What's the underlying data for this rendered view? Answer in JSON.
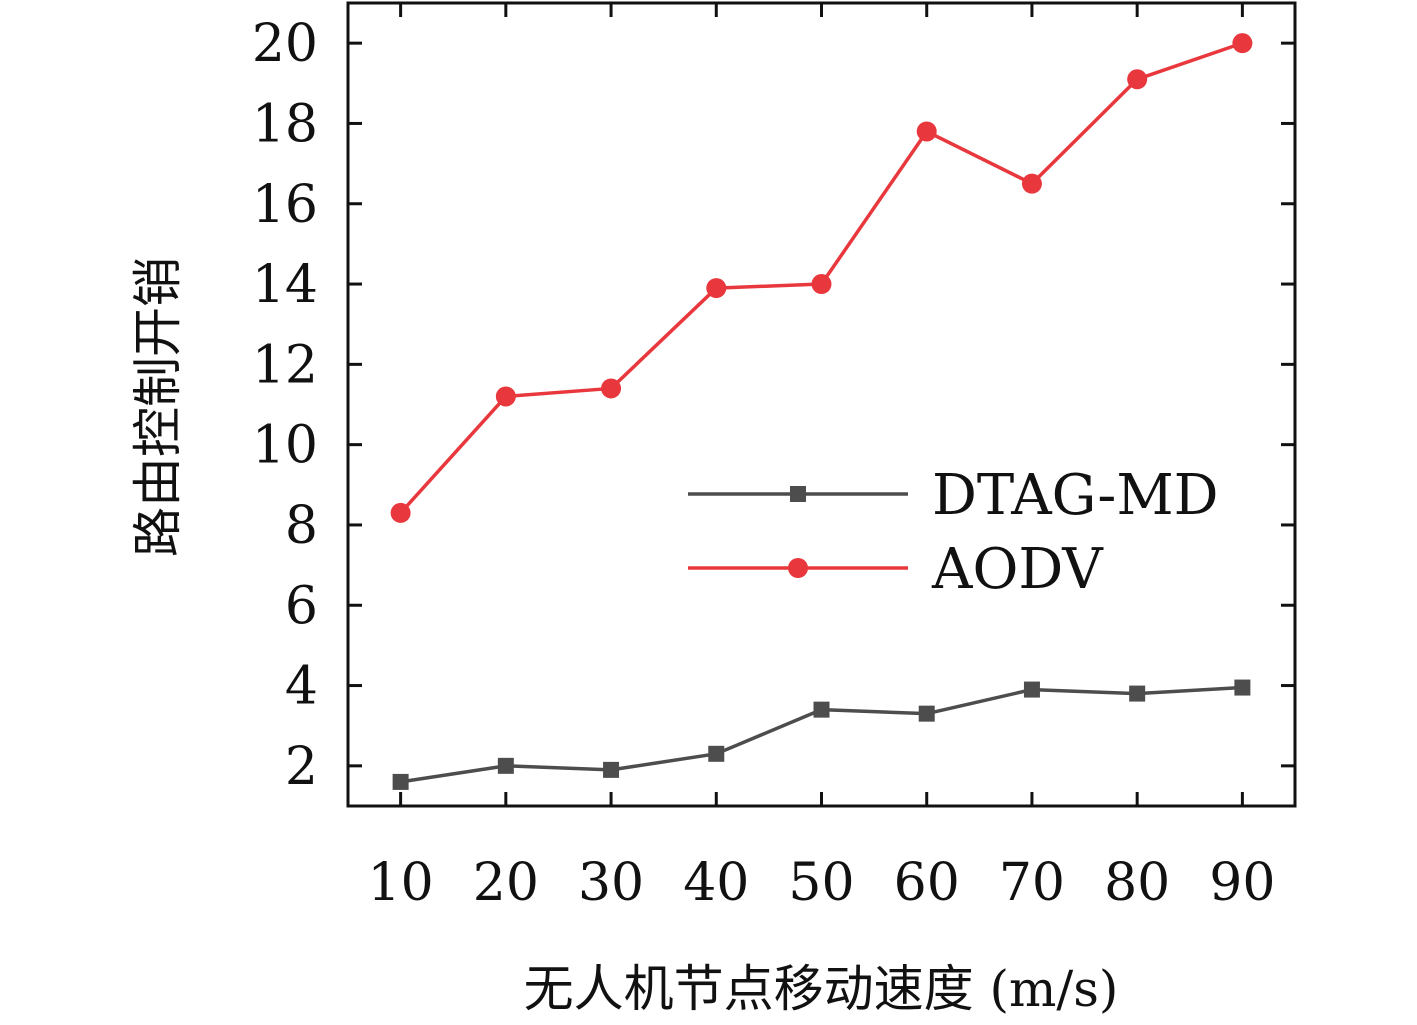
{
  "chart_data": {
    "type": "line",
    "xlabel": "无人机节点移动速度 (m/s)",
    "ylabel": "路由控制开销",
    "x": [
      10,
      20,
      30,
      40,
      50,
      60,
      70,
      80,
      90
    ],
    "x_tick_labels": [
      "10",
      "20",
      "30",
      "40",
      "50",
      "60",
      "70",
      "80",
      "90"
    ],
    "y_ticks": [
      2,
      4,
      6,
      8,
      10,
      12,
      14,
      16,
      18,
      20
    ],
    "y_tick_labels": [
      "2",
      "4",
      "6",
      "8",
      "10",
      "12",
      "14",
      "16",
      "18",
      "20"
    ],
    "xlim": [
      5,
      95
    ],
    "ylim": [
      1,
      21
    ],
    "grid": false,
    "legend_position": "right",
    "series": [
      {
        "name": "DTAG-MD",
        "color": "#4d4d4d",
        "marker": "square",
        "values": [
          1.6,
          2.0,
          1.9,
          2.3,
          3.4,
          3.3,
          3.9,
          3.8,
          3.95
        ]
      },
      {
        "name": "AODV",
        "color": "#e8383d",
        "marker": "circle",
        "values": [
          8.3,
          11.2,
          11.4,
          13.9,
          14.0,
          17.8,
          16.5,
          19.1,
          20.0
        ]
      }
    ]
  }
}
